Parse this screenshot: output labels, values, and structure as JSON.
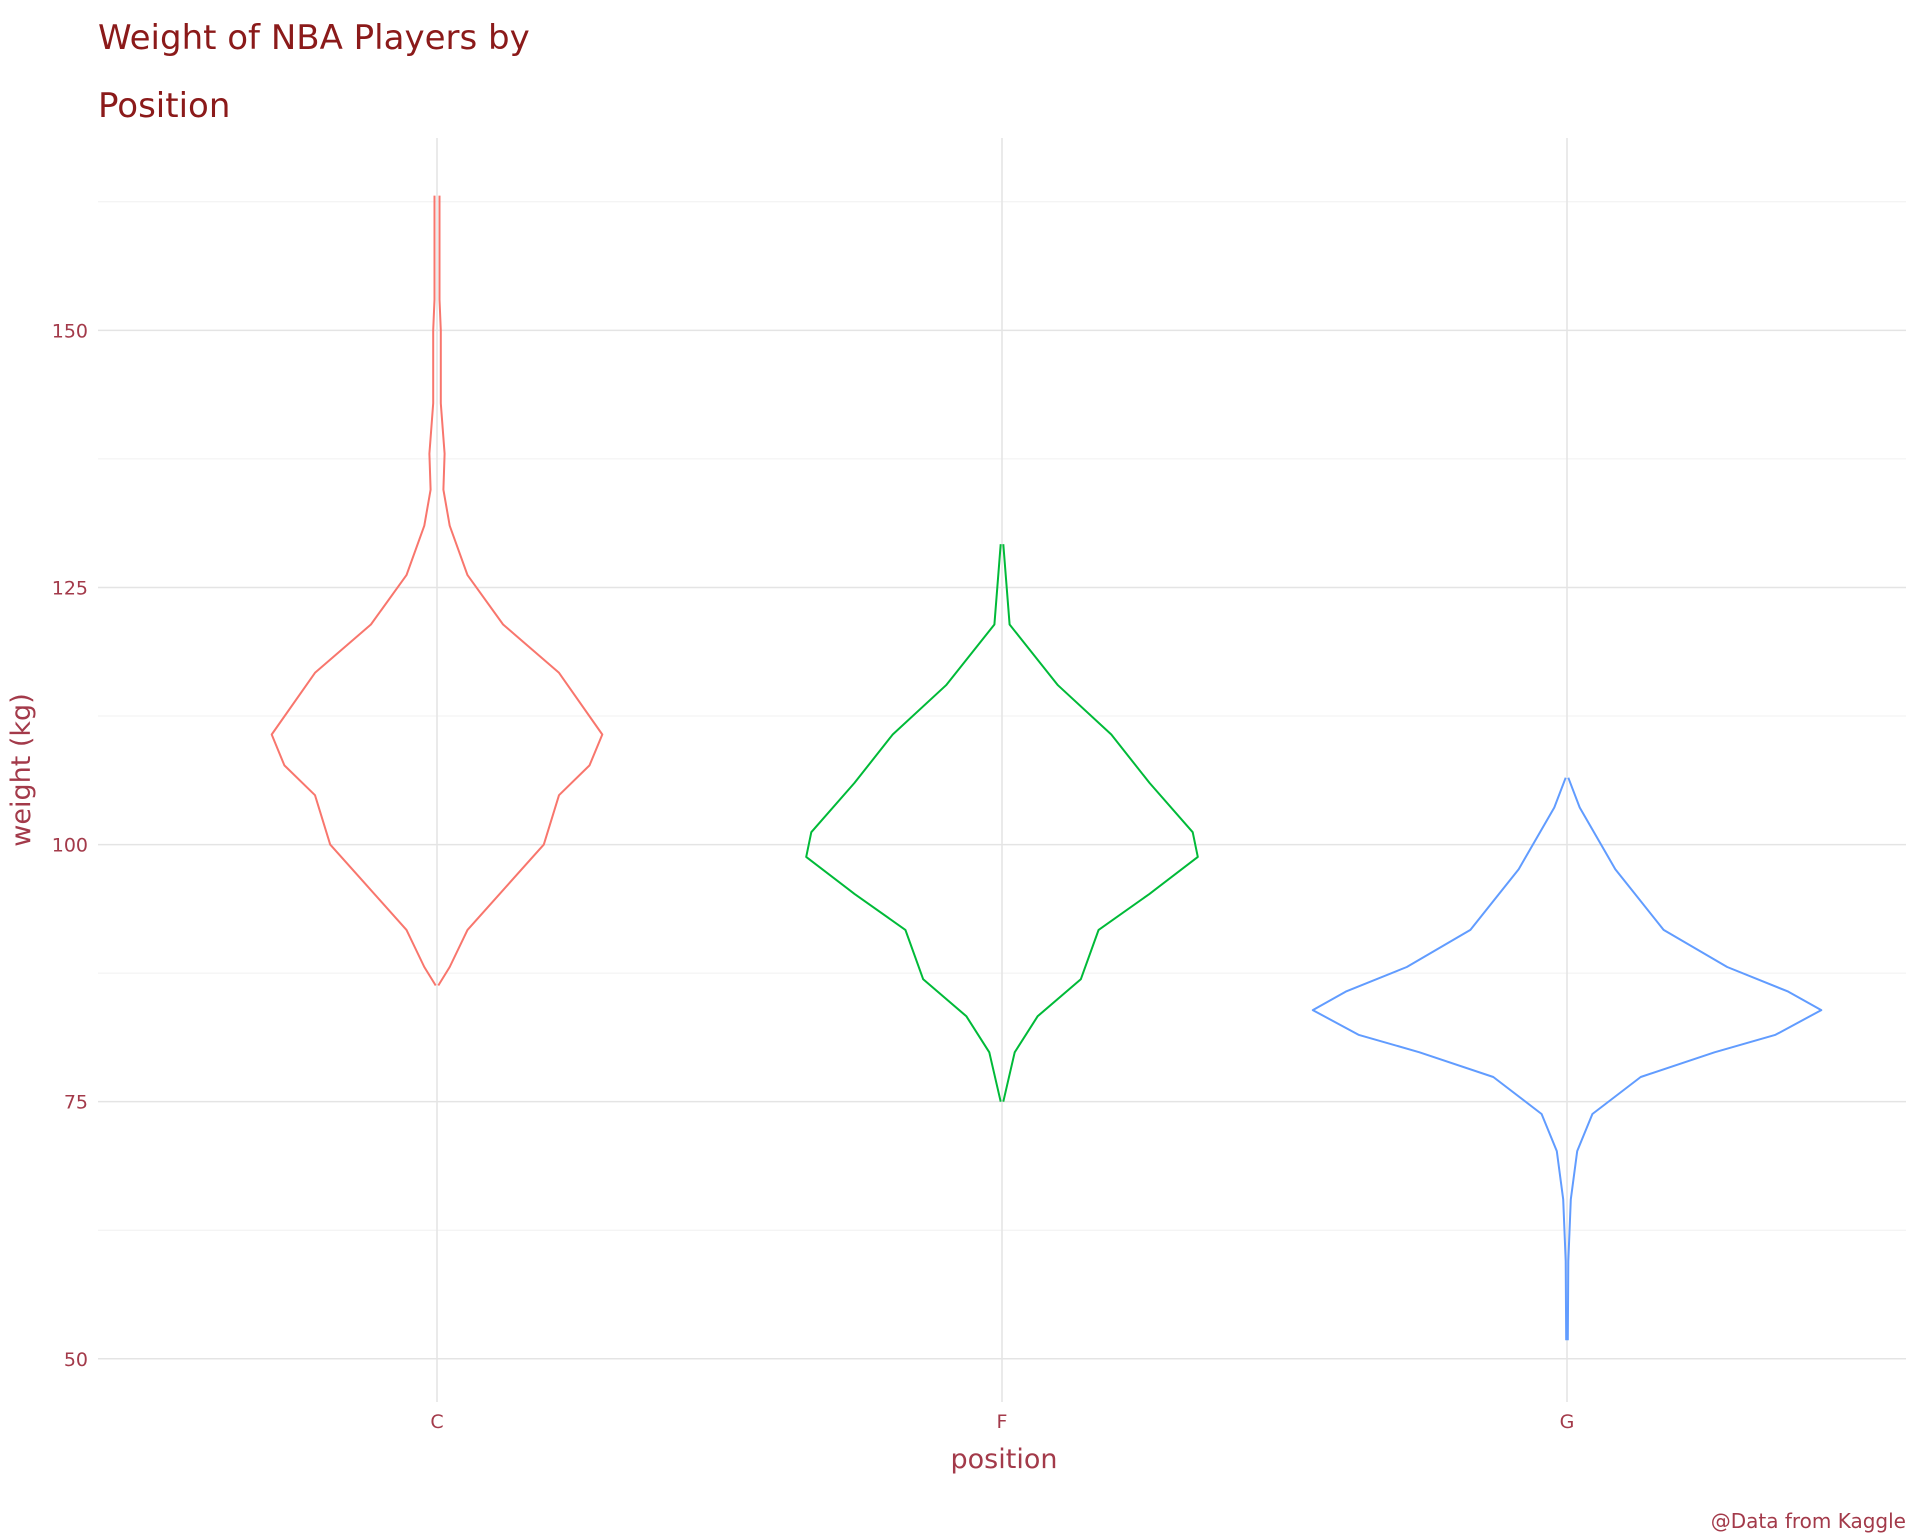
{
  "chart_data": {
    "type": "violin",
    "title": "Weight of NBA Players by Position",
    "caption": "@Data from Kaggle",
    "x_label": "position",
    "y_label": "weight (kg)",
    "categories": [
      "C",
      "F",
      "G"
    ],
    "ylim": [
      45.8,
      168.7
    ],
    "yticks": [
      50,
      75,
      100,
      125,
      150
    ],
    "minor_yticks": [
      62.5,
      87.5,
      112.5,
      137.5,
      162.5
    ],
    "grid": true,
    "violins": [
      {
        "color": "#f8766d",
        "y": [
          163.1,
          153,
          150,
          142.9,
          138,
          134.5,
          131,
          126.2,
          121.4,
          116.7,
          110.7,
          107.7,
          104.8,
          100,
          96.4,
          91.7,
          88.1,
          86.3
        ],
        "density": [
          0.01,
          0.01,
          0.015,
          0.015,
          0.03,
          0.025,
          0.05,
          0.12,
          0.26,
          0.48,
          0.65,
          0.6,
          0.48,
          0.42,
          0.29,
          0.12,
          0.05,
          0.005
        ]
      },
      {
        "color": "#00ba38",
        "y": [
          129.2,
          121.4,
          115.5,
          110.7,
          106,
          101.2,
          98.8,
          95.2,
          91.7,
          86.9,
          83.3,
          79.8,
          75
        ],
        "density": [
          0.005,
          0.03,
          0.22,
          0.43,
          0.58,
          0.75,
          0.77,
          0.58,
          0.38,
          0.31,
          0.14,
          0.05,
          0.005
        ]
      },
      {
        "color": "#619cff",
        "y": [
          106.5,
          103.6,
          97.6,
          91.7,
          88.1,
          85.7,
          83.9,
          81.5,
          79.8,
          77.4,
          73.8,
          70.2,
          65.5,
          59.5,
          51.8
        ],
        "density": [
          0.005,
          0.05,
          0.19,
          0.38,
          0.63,
          0.87,
          1,
          0.82,
          0.58,
          0.29,
          0.1,
          0.04,
          0.015,
          0.005,
          0.003
        ]
      }
    ]
  }
}
